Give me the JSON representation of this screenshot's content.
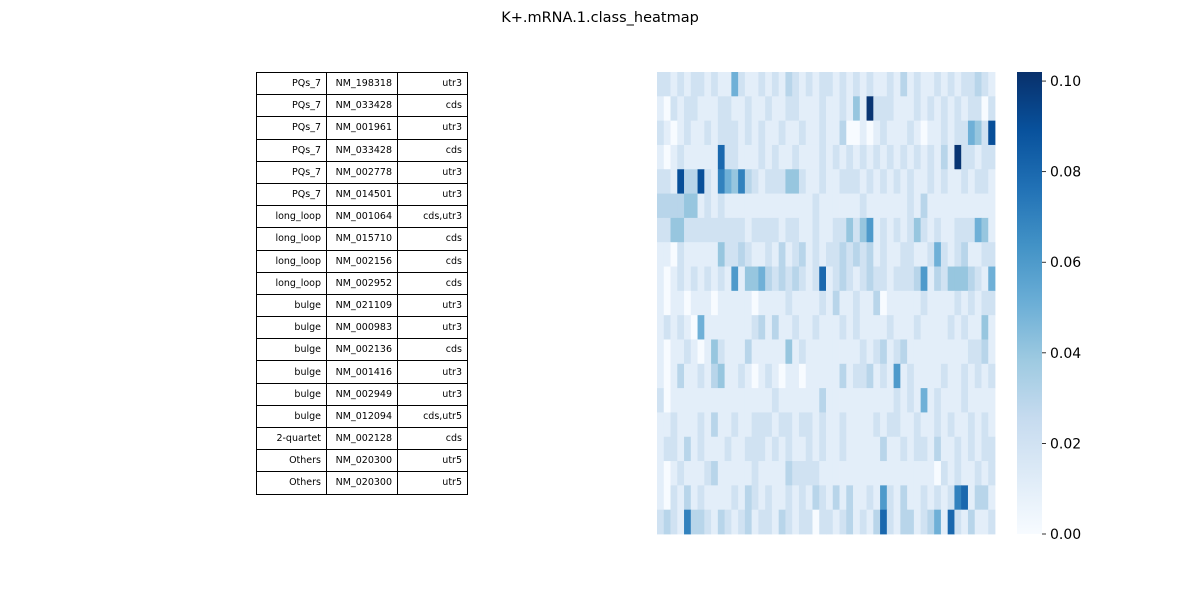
{
  "title": "K+.mRNA.1.class_heatmap",
  "table_rows": [
    {
      "class": "PQs_7",
      "id": "NM_198318",
      "region": "utr3"
    },
    {
      "class": "PQs_7",
      "id": "NM_033428",
      "region": "cds"
    },
    {
      "class": "PQs_7",
      "id": "NM_001961",
      "region": "utr3"
    },
    {
      "class": "PQs_7",
      "id": "NM_033428",
      "region": "cds"
    },
    {
      "class": "PQs_7",
      "id": "NM_002778",
      "region": "utr3"
    },
    {
      "class": "PQs_7",
      "id": "NM_014501",
      "region": "utr3"
    },
    {
      "class": "long_loop",
      "id": "NM_001064",
      "region": "cds,utr3"
    },
    {
      "class": "long_loop",
      "id": "NM_015710",
      "region": "cds"
    },
    {
      "class": "long_loop",
      "id": "NM_002156",
      "region": "cds"
    },
    {
      "class": "long_loop",
      "id": "NM_002952",
      "region": "cds"
    },
    {
      "class": "bulge",
      "id": "NM_021109",
      "region": "utr3"
    },
    {
      "class": "bulge",
      "id": "NM_000983",
      "region": "utr3"
    },
    {
      "class": "bulge",
      "id": "NM_002136",
      "region": "cds"
    },
    {
      "class": "bulge",
      "id": "NM_001416",
      "region": "utr3"
    },
    {
      "class": "bulge",
      "id": "NM_002949",
      "region": "utr3"
    },
    {
      "class": "bulge",
      "id": "NM_012094",
      "region": "cds,utr5"
    },
    {
      "class": "2-quartet",
      "id": "NM_002128",
      "region": "cds"
    },
    {
      "class": "Others",
      "id": "NM_020300",
      "region": "utr5"
    },
    {
      "class": "Others",
      "id": "NM_020300",
      "region": "utr5"
    }
  ],
  "chart_data": {
    "type": "heatmap",
    "title": "K+.mRNA.1.class_heatmap",
    "colormap": "Blues",
    "colormap_low": "#f7fbff",
    "colormap_high": "#08306b",
    "vmin": 0.0,
    "vmax": 0.102,
    "colorbar_ticks": [
      "0.00",
      "0.02",
      "0.04",
      "0.06",
      "0.08",
      "0.10"
    ],
    "n_rows": 19,
    "n_cols": 50,
    "values": [
      [
        0.02,
        0.02,
        0.01,
        0.02,
        0.01,
        0.02,
        0.02,
        0.01,
        0.02,
        0.01,
        0.01,
        0.05,
        0.02,
        0.01,
        0.01,
        0.02,
        0.01,
        0.02,
        0.01,
        0.03,
        0.02,
        0.01,
        0.02,
        0.01,
        0.02,
        0.02,
        0.01,
        0.02,
        0.01,
        0.02,
        0.01,
        0.02,
        0.01,
        0.01,
        0.02,
        0.01,
        0.03,
        0.01,
        0.02,
        0.01,
        0.01,
        0.02,
        0.01,
        0.02,
        0.01,
        0.02,
        0.02,
        0.03,
        0.02,
        0.01
      ],
      [
        0.01,
        0.0,
        0.02,
        0.01,
        0.02,
        0.02,
        0.01,
        0.01,
        0.01,
        0.02,
        0.02,
        0.01,
        0.01,
        0.02,
        0.01,
        0.01,
        0.02,
        0.01,
        0.01,
        0.02,
        0.02,
        0.01,
        0.01,
        0.01,
        0.02,
        0.01,
        0.01,
        0.02,
        0.01,
        0.04,
        0.01,
        0.1,
        0.02,
        0.02,
        0.02,
        0.01,
        0.01,
        0.01,
        0.02,
        0.01,
        0.02,
        0.01,
        0.02,
        0.01,
        0.02,
        0.01,
        0.02,
        0.02,
        0.0,
        0.02
      ],
      [
        0.02,
        0.01,
        0.0,
        0.01,
        0.02,
        0.01,
        0.01,
        0.02,
        0.01,
        0.02,
        0.02,
        0.02,
        0.01,
        0.02,
        0.01,
        0.02,
        0.01,
        0.01,
        0.02,
        0.01,
        0.01,
        0.02,
        0.01,
        0.01,
        0.02,
        0.01,
        0.01,
        0.03,
        0.0,
        0.0,
        0.01,
        0.0,
        0.01,
        0.02,
        0.01,
        0.01,
        0.01,
        0.02,
        0.01,
        0.0,
        0.01,
        0.01,
        0.02,
        0.01,
        0.02,
        0.02,
        0.05,
        0.04,
        0.02,
        0.09
      ],
      [
        0.01,
        0.0,
        0.01,
        0.02,
        0.01,
        0.01,
        0.01,
        0.01,
        0.01,
        0.08,
        0.02,
        0.02,
        0.01,
        0.01,
        0.01,
        0.02,
        0.01,
        0.02,
        0.01,
        0.01,
        0.02,
        0.01,
        0.01,
        0.01,
        0.02,
        0.01,
        0.02,
        0.01,
        0.02,
        0.01,
        0.02,
        0.01,
        0.02,
        0.01,
        0.02,
        0.01,
        0.02,
        0.01,
        0.02,
        0.01,
        0.02,
        0.01,
        0.03,
        0.01,
        0.1,
        0.02,
        0.02,
        0.01,
        0.02,
        0.02
      ],
      [
        0.02,
        0.02,
        0.01,
        0.09,
        0.03,
        0.03,
        0.09,
        0.02,
        0.01,
        0.07,
        0.05,
        0.04,
        0.07,
        0.03,
        0.02,
        0.01,
        0.02,
        0.02,
        0.02,
        0.04,
        0.04,
        0.02,
        0.01,
        0.01,
        0.02,
        0.01,
        0.01,
        0.02,
        0.02,
        0.02,
        0.01,
        0.02,
        0.01,
        0.02,
        0.01,
        0.02,
        0.01,
        0.02,
        0.01,
        0.01,
        0.02,
        0.01,
        0.02,
        0.01,
        0.01,
        0.02,
        0.01,
        0.02,
        0.02,
        0.01
      ],
      [
        0.03,
        0.03,
        0.03,
        0.03,
        0.04,
        0.04,
        0.01,
        0.02,
        0.01,
        0.02,
        0.01,
        0.01,
        0.01,
        0.01,
        0.01,
        0.01,
        0.01,
        0.01,
        0.01,
        0.01,
        0.01,
        0.01,
        0.01,
        0.02,
        0.01,
        0.01,
        0.01,
        0.01,
        0.01,
        0.01,
        0.02,
        0.01,
        0.01,
        0.01,
        0.01,
        0.01,
        0.01,
        0.02,
        0.01,
        0.03,
        0.01,
        0.01,
        0.01,
        0.01,
        0.01,
        0.01,
        0.01,
        0.01,
        0.01,
        0.01
      ],
      [
        0.02,
        0.02,
        0.04,
        0.04,
        0.02,
        0.02,
        0.02,
        0.02,
        0.02,
        0.02,
        0.02,
        0.02,
        0.02,
        0.01,
        0.02,
        0.02,
        0.02,
        0.02,
        0.01,
        0.02,
        0.02,
        0.01,
        0.01,
        0.02,
        0.01,
        0.01,
        0.02,
        0.02,
        0.04,
        0.02,
        0.04,
        0.06,
        0.01,
        0.02,
        0.01,
        0.02,
        0.01,
        0.02,
        0.04,
        0.02,
        0.01,
        0.02,
        0.01,
        0.01,
        0.02,
        0.02,
        0.02,
        0.05,
        0.04,
        0.01
      ],
      [
        0.01,
        0.01,
        0.0,
        0.02,
        0.01,
        0.01,
        0.01,
        0.01,
        0.01,
        0.04,
        0.02,
        0.02,
        0.03,
        0.02,
        0.01,
        0.01,
        0.02,
        0.01,
        0.03,
        0.01,
        0.02,
        0.03,
        0.01,
        0.02,
        0.01,
        0.02,
        0.02,
        0.03,
        0.02,
        0.03,
        0.02,
        0.03,
        0.01,
        0.02,
        0.01,
        0.01,
        0.02,
        0.02,
        0.01,
        0.01,
        0.02,
        0.05,
        0.02,
        0.01,
        0.02,
        0.03,
        0.01,
        0.01,
        0.02,
        0.02
      ],
      [
        0.01,
        0.0,
        0.01,
        0.02,
        0.01,
        0.02,
        0.01,
        0.02,
        0.01,
        0.02,
        0.01,
        0.06,
        0.01,
        0.04,
        0.04,
        0.05,
        0.03,
        0.02,
        0.03,
        0.02,
        0.03,
        0.02,
        0.01,
        0.02,
        0.08,
        0.01,
        0.02,
        0.03,
        0.02,
        0.01,
        0.02,
        0.03,
        0.02,
        0.02,
        0.01,
        0.02,
        0.02,
        0.02,
        0.03,
        0.06,
        0.01,
        0.03,
        0.02,
        0.04,
        0.04,
        0.04,
        0.03,
        0.02,
        0.01,
        0.05
      ],
      [
        0.01,
        0.0,
        0.01,
        0.01,
        0.0,
        0.01,
        0.01,
        0.01,
        0.0,
        0.01,
        0.01,
        0.01,
        0.01,
        0.01,
        0.0,
        0.01,
        0.01,
        0.01,
        0.01,
        0.02,
        0.01,
        0.01,
        0.01,
        0.01,
        0.02,
        0.01,
        0.03,
        0.01,
        0.01,
        0.02,
        0.01,
        0.01,
        0.03,
        0.0,
        0.01,
        0.01,
        0.01,
        0.01,
        0.01,
        0.02,
        0.01,
        0.01,
        0.01,
        0.01,
        0.02,
        0.01,
        0.02,
        0.01,
        0.02,
        0.02
      ],
      [
        0.01,
        0.02,
        0.01,
        0.02,
        0.01,
        0.0,
        0.05,
        0.01,
        0.01,
        0.01,
        0.01,
        0.01,
        0.01,
        0.01,
        0.02,
        0.03,
        0.01,
        0.03,
        0.01,
        0.01,
        0.02,
        0.01,
        0.01,
        0.02,
        0.01,
        0.01,
        0.01,
        0.02,
        0.01,
        0.02,
        0.01,
        0.01,
        0.01,
        0.01,
        0.02,
        0.01,
        0.01,
        0.01,
        0.02,
        0.01,
        0.01,
        0.01,
        0.01,
        0.02,
        0.01,
        0.02,
        0.01,
        0.01,
        0.04,
        0.01
      ],
      [
        0.01,
        0.0,
        0.01,
        0.01,
        0.02,
        0.01,
        0.0,
        0.01,
        0.04,
        0.02,
        0.01,
        0.01,
        0.01,
        0.03,
        0.01,
        0.01,
        0.01,
        0.01,
        0.01,
        0.04,
        0.01,
        0.02,
        0.01,
        0.01,
        0.01,
        0.01,
        0.01,
        0.01,
        0.01,
        0.01,
        0.02,
        0.01,
        0.02,
        0.03,
        0.01,
        0.02,
        0.03,
        0.01,
        0.01,
        0.01,
        0.01,
        0.01,
        0.01,
        0.01,
        0.01,
        0.01,
        0.02,
        0.02,
        0.03,
        0.01
      ],
      [
        0.01,
        0.0,
        0.01,
        0.03,
        0.01,
        0.01,
        0.02,
        0.01,
        0.03,
        0.04,
        0.01,
        0.01,
        0.02,
        0.01,
        0.0,
        0.01,
        0.02,
        0.01,
        0.0,
        0.01,
        0.01,
        0.0,
        0.01,
        0.01,
        0.01,
        0.01,
        0.01,
        0.03,
        0.01,
        0.02,
        0.02,
        0.03,
        0.01,
        0.02,
        0.01,
        0.06,
        0.01,
        0.02,
        0.01,
        0.01,
        0.01,
        0.01,
        0.02,
        0.01,
        0.01,
        0.02,
        0.01,
        0.02,
        0.01,
        0.02
      ],
      [
        0.02,
        0.0,
        0.01,
        0.01,
        0.01,
        0.01,
        0.01,
        0.01,
        0.01,
        0.01,
        0.01,
        0.01,
        0.01,
        0.01,
        0.01,
        0.01,
        0.01,
        0.02,
        0.01,
        0.01,
        0.01,
        0.01,
        0.01,
        0.01,
        0.03,
        0.01,
        0.01,
        0.01,
        0.01,
        0.01,
        0.01,
        0.01,
        0.01,
        0.01,
        0.01,
        0.02,
        0.01,
        0.02,
        0.01,
        0.05,
        0.01,
        0.02,
        0.01,
        0.01,
        0.01,
        0.02,
        0.01,
        0.01,
        0.01,
        0.01
      ],
      [
        0.01,
        0.01,
        0.02,
        0.01,
        0.01,
        0.01,
        0.02,
        0.01,
        0.03,
        0.01,
        0.01,
        0.02,
        0.01,
        0.01,
        0.02,
        0.02,
        0.02,
        0.01,
        0.02,
        0.02,
        0.01,
        0.02,
        0.02,
        0.01,
        0.02,
        0.01,
        0.01,
        0.02,
        0.01,
        0.01,
        0.01,
        0.01,
        0.02,
        0.01,
        0.02,
        0.02,
        0.01,
        0.01,
        0.02,
        0.01,
        0.01,
        0.02,
        0.01,
        0.02,
        0.01,
        0.01,
        0.02,
        0.01,
        0.02,
        0.01
      ],
      [
        0.01,
        0.02,
        0.02,
        0.01,
        0.03,
        0.01,
        0.02,
        0.01,
        0.01,
        0.01,
        0.02,
        0.01,
        0.01,
        0.02,
        0.02,
        0.02,
        0.01,
        0.02,
        0.01,
        0.02,
        0.01,
        0.01,
        0.02,
        0.01,
        0.02,
        0.01,
        0.01,
        0.02,
        0.01,
        0.01,
        0.01,
        0.01,
        0.01,
        0.03,
        0.01,
        0.01,
        0.02,
        0.01,
        0.02,
        0.02,
        0.01,
        0.03,
        0.01,
        0.01,
        0.02,
        0.01,
        0.02,
        0.01,
        0.02,
        0.02
      ],
      [
        0.01,
        0.0,
        0.01,
        0.02,
        0.01,
        0.01,
        0.01,
        0.02,
        0.03,
        0.01,
        0.01,
        0.01,
        0.01,
        0.01,
        0.02,
        0.01,
        0.01,
        0.01,
        0.01,
        0.03,
        0.02,
        0.02,
        0.02,
        0.02,
        0.01,
        0.01,
        0.01,
        0.01,
        0.01,
        0.01,
        0.01,
        0.01,
        0.01,
        0.01,
        0.01,
        0.01,
        0.01,
        0.01,
        0.01,
        0.01,
        0.01,
        0.0,
        0.02,
        0.01,
        0.02,
        0.01,
        0.01,
        0.02,
        0.01,
        0.02
      ],
      [
        0.01,
        0.0,
        0.02,
        0.01,
        0.03,
        0.01,
        0.02,
        0.01,
        0.01,
        0.01,
        0.01,
        0.02,
        0.01,
        0.03,
        0.02,
        0.01,
        0.02,
        0.01,
        0.01,
        0.02,
        0.01,
        0.02,
        0.01,
        0.03,
        0.02,
        0.01,
        0.03,
        0.01,
        0.03,
        0.01,
        0.01,
        0.02,
        0.01,
        0.06,
        0.02,
        0.01,
        0.03,
        0.01,
        0.01,
        0.02,
        0.01,
        0.02,
        0.01,
        0.02,
        0.07,
        0.08,
        0.01,
        0.03,
        0.03,
        0.01
      ],
      [
        0.02,
        0.03,
        0.02,
        0.01,
        0.07,
        0.03,
        0.03,
        0.02,
        0.01,
        0.03,
        0.02,
        0.01,
        0.02,
        0.03,
        0.01,
        0.02,
        0.02,
        0.01,
        0.03,
        0.02,
        0.01,
        0.02,
        0.02,
        0.0,
        0.02,
        0.02,
        0.01,
        0.02,
        0.03,
        0.01,
        0.02,
        0.01,
        0.03,
        0.08,
        0.02,
        0.01,
        0.03,
        0.03,
        0.01,
        0.02,
        0.03,
        0.05,
        0.01,
        0.08,
        0.02,
        0.01,
        0.03,
        0.01,
        0.01,
        0.02
      ]
    ]
  }
}
